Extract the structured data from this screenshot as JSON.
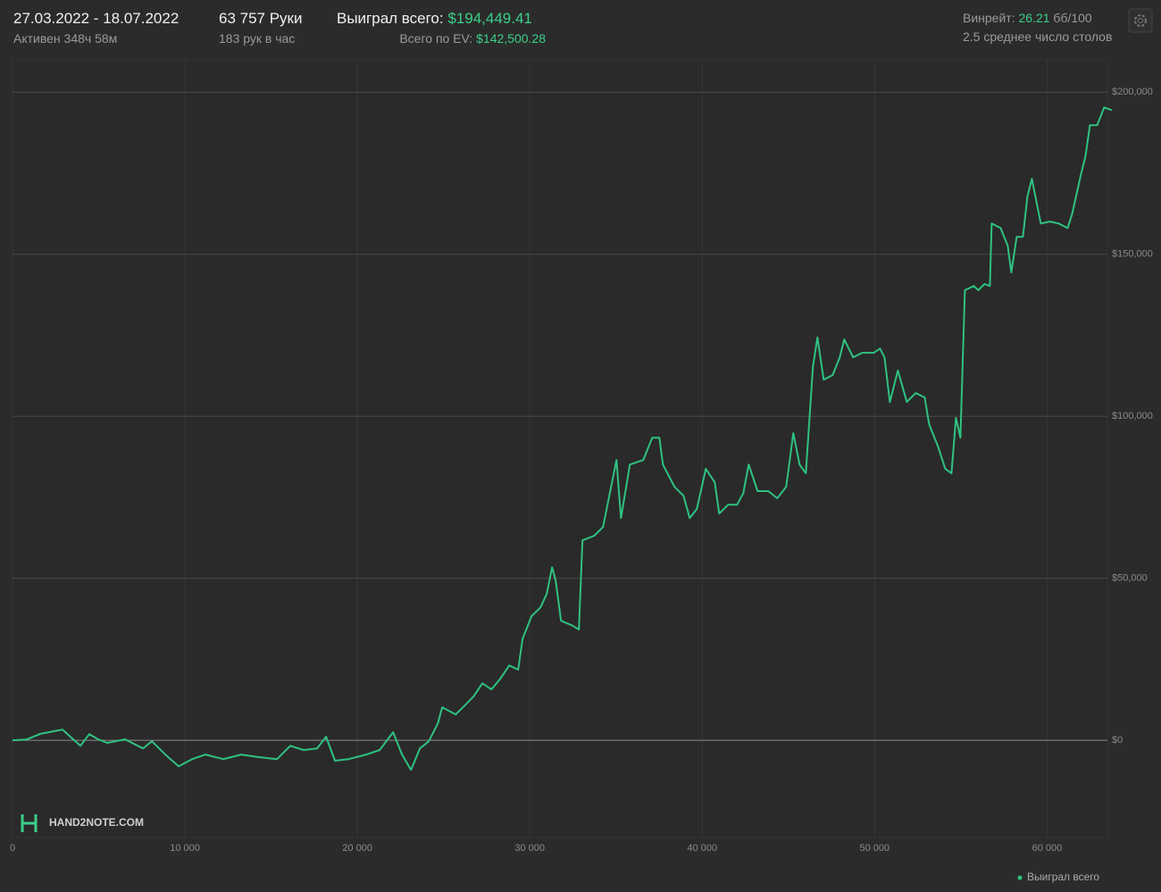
{
  "header": {
    "dates": "27.03.2022 - 18.07.2022",
    "active": "Активен 348ч 58м",
    "hands": "63 757 Руки",
    "hands_per_hour": "183 рук в час",
    "won_label": "Выиграл всего:",
    "won_value": "$194,449.41",
    "ev_label": "Всего по EV:",
    "ev_value": "$142,500.28",
    "winrate_label": "Винрейт:",
    "winrate_value": "26.21",
    "winrate_unit": "бб/100",
    "tables": "2.5 среднее число столов",
    "logo": "HAND2NOTE.COM"
  },
  "chart_data": {
    "type": "line",
    "x": [
      0,
      829,
      1606,
      2902,
      3938,
      4456,
      4974,
      5492,
      6528,
      7565,
      8083,
      8860,
      9637,
      10415,
      11192,
      12228,
      13264,
      14301,
      15337,
      16114,
      16891,
      17668,
      18187,
      18705,
      19482,
      20518,
      21295,
      22073,
      22591,
      23109,
      23627,
      24145,
      24663,
      24922,
      25699,
      26218,
      26736,
      27254,
      27772,
      28290,
      28808,
      29326,
      29585,
      30104,
      30622,
      30984,
      31295,
      31503,
      31813,
      32435,
      32850,
      33057,
      33731,
      34249,
      35026,
      35285,
      35803,
      36580,
      37098,
      37513,
      37720,
      38394,
      38912,
      39275,
      39689,
      40207,
      40725,
      40984,
      41503,
      42021,
      42383,
      42694,
      43212,
      43834,
      44352,
      44870,
      45285,
      45648,
      46010,
      46425,
      46684,
      47047,
      47565,
      47979,
      48238,
      48756,
      49275,
      49948,
      50311,
      50570,
      50881,
      51347,
      51865,
      52383,
      52902,
      53161,
      53679,
      54093,
      54456,
      54715,
      54974,
      55233,
      55751,
      56010,
      56373,
      56684,
      56788,
      57306,
      57720,
      57927,
      58238,
      58601,
      58860,
      59119,
      59637,
      60155,
      60674,
      61192,
      61451,
      61969,
      62228,
      62487,
      62902,
      63316,
      63757
    ],
    "series": [
      {
        "name": "Выиграл всего",
        "color": "#2fc281",
        "values": [
          0,
          275,
          2000,
          3300,
          -1700,
          1900,
          300,
          -800,
          300,
          -2500,
          -300,
          -4400,
          -8000,
          -5800,
          -4400,
          -5800,
          -4400,
          -5200,
          -5800,
          -1700,
          -3000,
          -2500,
          1100,
          -6300,
          -5800,
          -4400,
          -3000,
          2500,
          -4400,
          -9100,
          -2500,
          -300,
          5200,
          10200,
          8000,
          10700,
          13500,
          17600,
          15700,
          19000,
          23100,
          21800,
          31400,
          38300,
          41000,
          45200,
          53400,
          49300,
          36900,
          35500,
          34200,
          61700,
          63100,
          65800,
          86500,
          68600,
          85100,
          86500,
          93400,
          93400,
          85100,
          78200,
          75500,
          68600,
          71400,
          83800,
          79600,
          70000,
          72700,
          72700,
          76300,
          85100,
          76900,
          76900,
          74700,
          78200,
          94800,
          85100,
          82400,
          115400,
          124300,
          111300,
          112700,
          118200,
          123700,
          118200,
          119600,
          119600,
          120900,
          118200,
          104400,
          114100,
          104400,
          107200,
          105800,
          97500,
          90600,
          83800,
          82400,
          99500,
          93400,
          138900,
          140200,
          138900,
          140800,
          140200,
          159500,
          158100,
          152600,
          144400,
          155400,
          155400,
          167800,
          173300,
          159500,
          160100,
          159500,
          158100,
          162300,
          174700,
          180200,
          189800,
          189800,
          195300,
          194449
        ]
      }
    ],
    "xlim": [
      0,
      63500
    ],
    "ylim": [
      -30000,
      210000
    ],
    "xticks": [
      0,
      {
        "value": 10000,
        "label": "10 000"
      },
      {
        "value": 20000,
        "label": "20 000"
      },
      {
        "value": 30000,
        "label": "30 000"
      },
      {
        "value": 40000,
        "label": "40 000"
      },
      {
        "value": 50000,
        "label": "50 000"
      },
      {
        "value": 60000,
        "label": "60 000"
      }
    ],
    "yticks": [
      {
        "value": 0,
        "label": "$0"
      },
      {
        "value": 50000,
        "label": "$50,000"
      },
      {
        "value": 100000,
        "label": "$100,000"
      },
      {
        "value": 150000,
        "label": "$150,000"
      },
      {
        "value": 200000,
        "label": "$200,000"
      }
    ],
    "grid": true
  }
}
